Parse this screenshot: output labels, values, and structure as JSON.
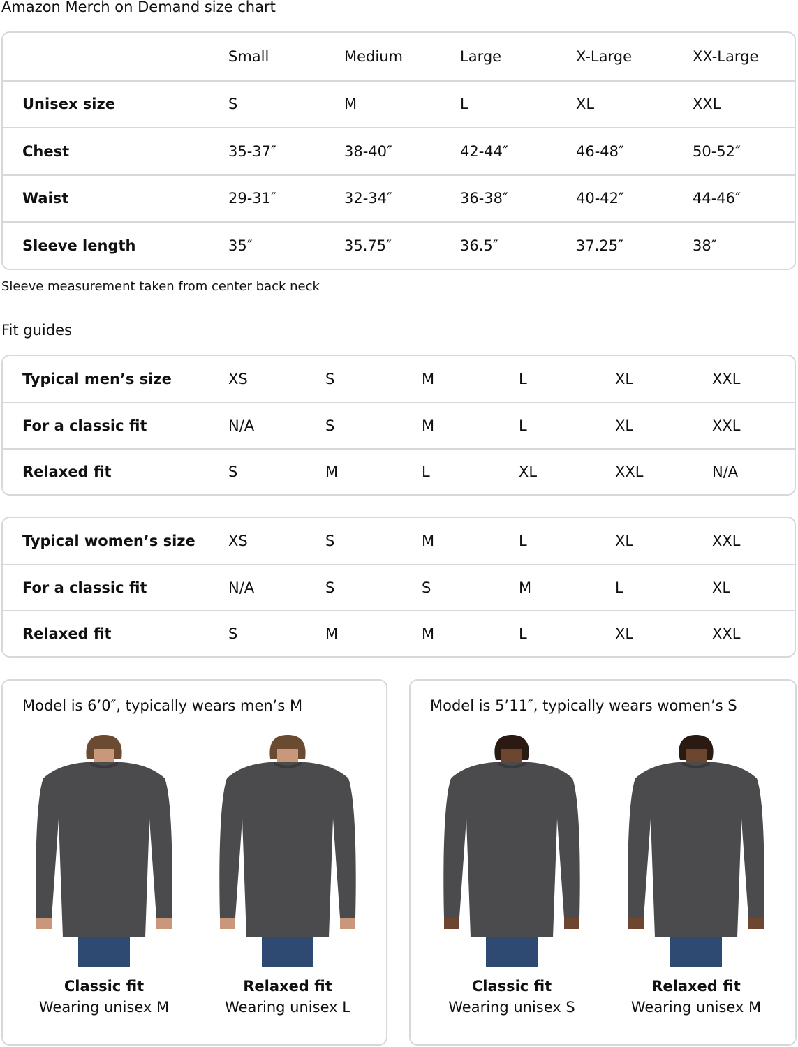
{
  "title": "Amazon Merch on Demand size chart",
  "size_chart": {
    "headers": [
      "",
      "Small",
      "Medium",
      "Large",
      "X-Large",
      "XX-Large"
    ],
    "rows": [
      {
        "label": "Unisex size",
        "values": [
          "S",
          "M",
          "L",
          "XL",
          "XXL"
        ]
      },
      {
        "label": "Chest",
        "values": [
          "35-37″",
          "38-40″",
          "42-44″",
          "46-48″",
          "50-52″"
        ]
      },
      {
        "label": "Waist",
        "values": [
          "29-31″",
          "32-34″",
          "36-38″",
          "40-42″",
          "44-46″"
        ]
      },
      {
        "label": "Sleeve length",
        "values": [
          "35″",
          "35.75″",
          "36.5″",
          "37.25″",
          "38″"
        ]
      }
    ]
  },
  "caption": "Sleeve measurement taken from center back neck",
  "fit_guides_title": "Fit guides",
  "mens_fit": {
    "rows": [
      {
        "label": "Typical men’s size",
        "values": [
          "XS",
          "S",
          "M",
          "L",
          "XL",
          "XXL"
        ]
      },
      {
        "label": "For a classic fit",
        "values": [
          "N/A",
          "S",
          "M",
          "L",
          "XL",
          "XXL"
        ]
      },
      {
        "label": "Relaxed fit",
        "values": [
          "S",
          "M",
          "L",
          "XL",
          "XXL",
          "N/A"
        ]
      }
    ]
  },
  "womens_fit": {
    "rows": [
      {
        "label": "Typical women’s size",
        "values": [
          "XS",
          "S",
          "M",
          "L",
          "XL",
          "XXL"
        ]
      },
      {
        "label": "For a classic fit",
        "values": [
          "N/A",
          "S",
          "S",
          "M",
          "L",
          "XL"
        ]
      },
      {
        "label": "Relaxed fit",
        "values": [
          "S",
          "M",
          "M",
          "L",
          "XL",
          "XXL"
        ]
      }
    ]
  },
  "models": [
    {
      "heading": "Model is 6’0″, typically wears men’s M",
      "photos": [
        {
          "fit": "Classic fit",
          "wearing": "Wearing unisex M",
          "skin": "#c9987a",
          "hair": "#6b4a32"
        },
        {
          "fit": "Relaxed fit",
          "wearing": "Wearing unisex L",
          "skin": "#c9987a",
          "hair": "#6b4a32"
        }
      ]
    },
    {
      "heading": "Model is 5’11″, typically wears women’s S",
      "photos": [
        {
          "fit": "Classic fit",
          "wearing": "Wearing unisex S",
          "skin": "#6e4630",
          "hair": "#2a1a12"
        },
        {
          "fit": "Relaxed fit",
          "wearing": "Wearing unisex M",
          "skin": "#6e4630",
          "hair": "#2a1a12"
        }
      ]
    }
  ],
  "colors": {
    "border": "#d5d9d9",
    "sweatshirt": "#4b4b4e",
    "jeans": "#2f4a72"
  }
}
